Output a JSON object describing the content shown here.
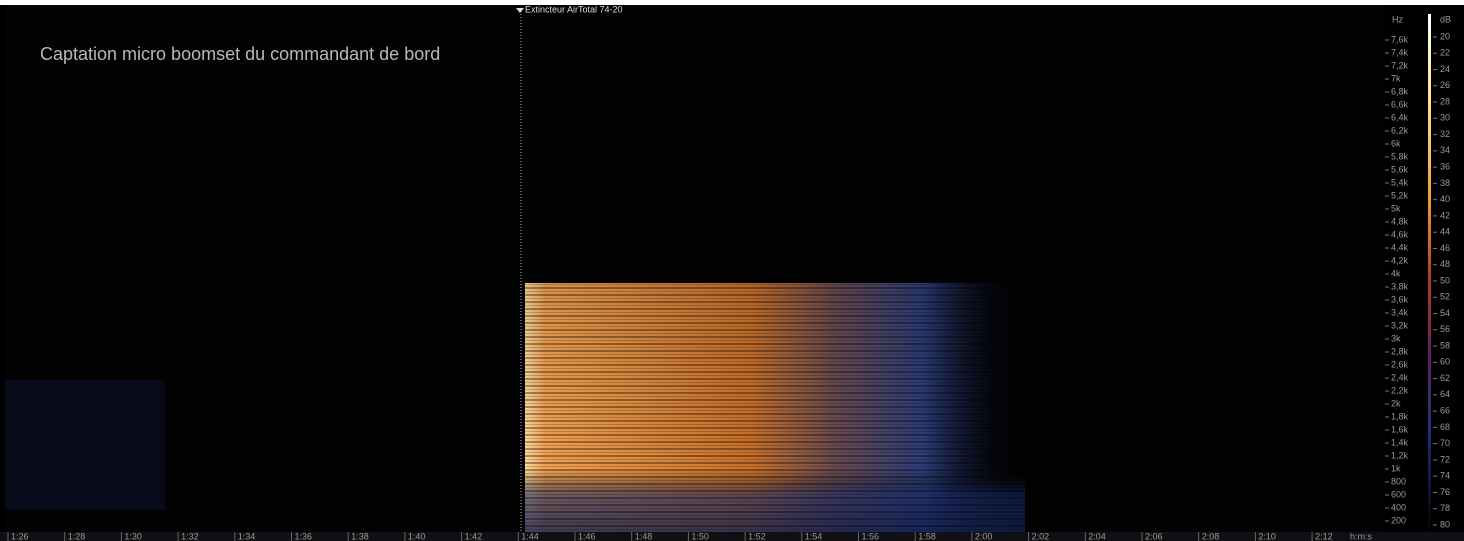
{
  "marker": {
    "label": "Extincteur AirTotal 74-20"
  },
  "annotation": "Captation micro boomset du commandant de bord",
  "frequency_axis": {
    "unit": "Hz",
    "labels": [
      "7,6k",
      "7,4k",
      "7,2k",
      "7k",
      "6,8k",
      "6,6k",
      "6,4k",
      "6,2k",
      "6k",
      "5,8k",
      "5,6k",
      "5,4k",
      "5,2k",
      "5k",
      "4,8k",
      "4,6k",
      "4,4k",
      "4,2k",
      "4k",
      "3,8k",
      "3,6k",
      "3,4k",
      "3,2k",
      "3k",
      "2,8k",
      "2,6k",
      "2,4k",
      "2,2k",
      "2k",
      "1,8k",
      "1,6k",
      "1,4k",
      "1,2k",
      "1k",
      "800",
      "600",
      "400",
      "200"
    ]
  },
  "level_axis": {
    "unit": "dB",
    "labels": [
      "20",
      "22",
      "24",
      "26",
      "28",
      "30",
      "32",
      "34",
      "36",
      "38",
      "40",
      "42",
      "44",
      "46",
      "48",
      "50",
      "52",
      "54",
      "56",
      "58",
      "60",
      "62",
      "64",
      "66",
      "68",
      "70",
      "72",
      "74",
      "76",
      "78",
      "80"
    ]
  },
  "time_axis": {
    "labels": [
      "1:26",
      "1:28",
      "1:30",
      "1:32",
      "1:34",
      "1:36",
      "1:38",
      "1:40",
      "1:42",
      "1:44",
      "1:46",
      "1:48",
      "1:50",
      "1:52",
      "1:54",
      "1:56",
      "1:58",
      "2:00",
      "2:02",
      "2:04",
      "2:06",
      "2:08",
      "2:10",
      "2:12"
    ],
    "unit": "h:m:s"
  }
}
